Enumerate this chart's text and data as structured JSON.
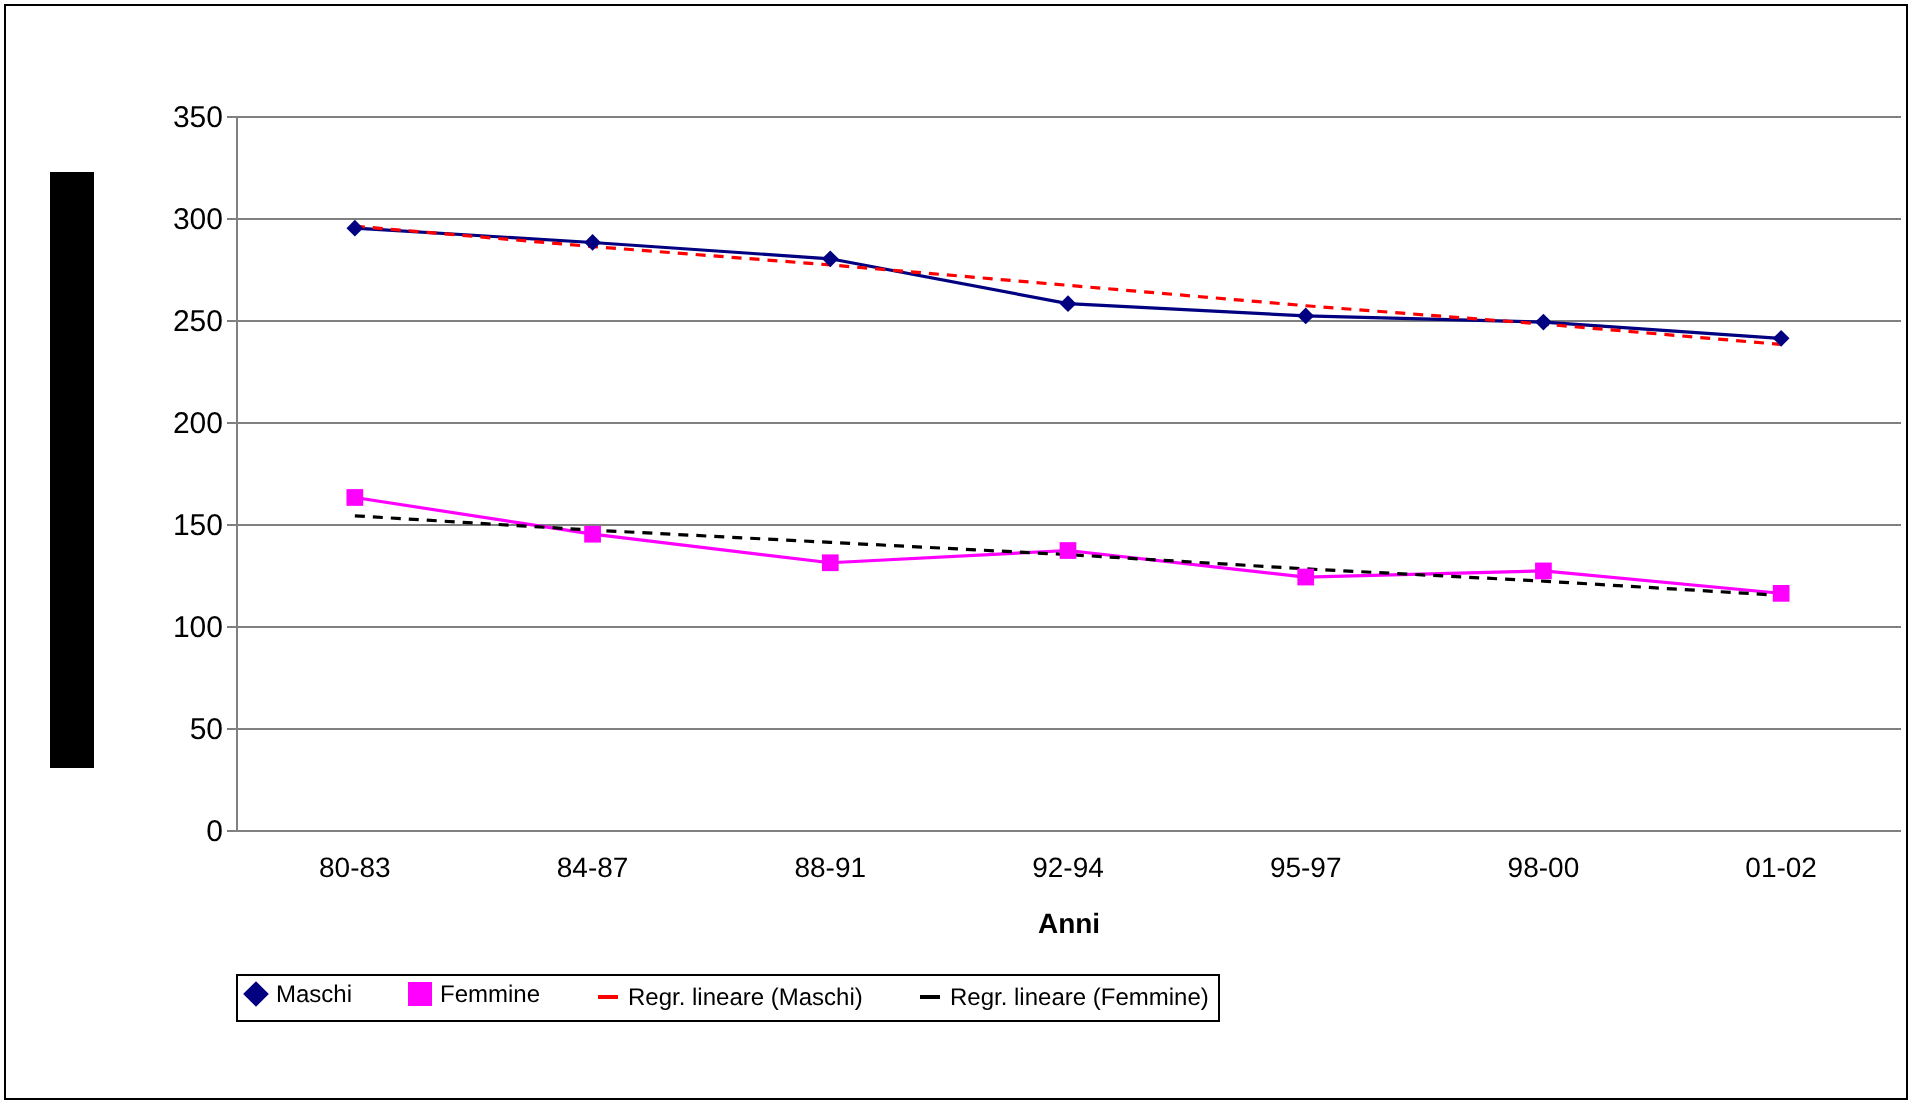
{
  "chart_data": {
    "type": "line",
    "xlabel": "Anni",
    "categories": [
      "80-83",
      "84-87",
      "88-91",
      "92-94",
      "95-97",
      "98-00",
      "01-02"
    ],
    "ylim": [
      0,
      350
    ],
    "yticks": [
      0,
      50,
      100,
      150,
      200,
      250,
      300,
      350
    ],
    "grid": "y",
    "legend": "bottom",
    "series": [
      {
        "name": "Maschi",
        "color": "#000080",
        "marker": "diamond",
        "line_style": "solid",
        "values": [
          295,
          288,
          280,
          258,
          252,
          249,
          241
        ]
      },
      {
        "name": "Femmine",
        "color": "#ff00ff",
        "marker": "square",
        "line_style": "solid",
        "values": [
          163,
          145,
          131,
          137,
          124,
          127,
          116
        ]
      },
      {
        "name": "Regr. lineare (Maschi)",
        "color": "#ff0000",
        "marker": "none",
        "line_style": "dashed",
        "values": [
          296,
          286,
          277,
          267,
          257,
          248,
          238
        ]
      },
      {
        "name": "Regr. lineare (Femmine)",
        "color": "#000000",
        "marker": "none",
        "line_style": "dashed",
        "values": [
          154,
          147,
          141,
          135,
          128,
          122,
          115
        ]
      }
    ]
  }
}
